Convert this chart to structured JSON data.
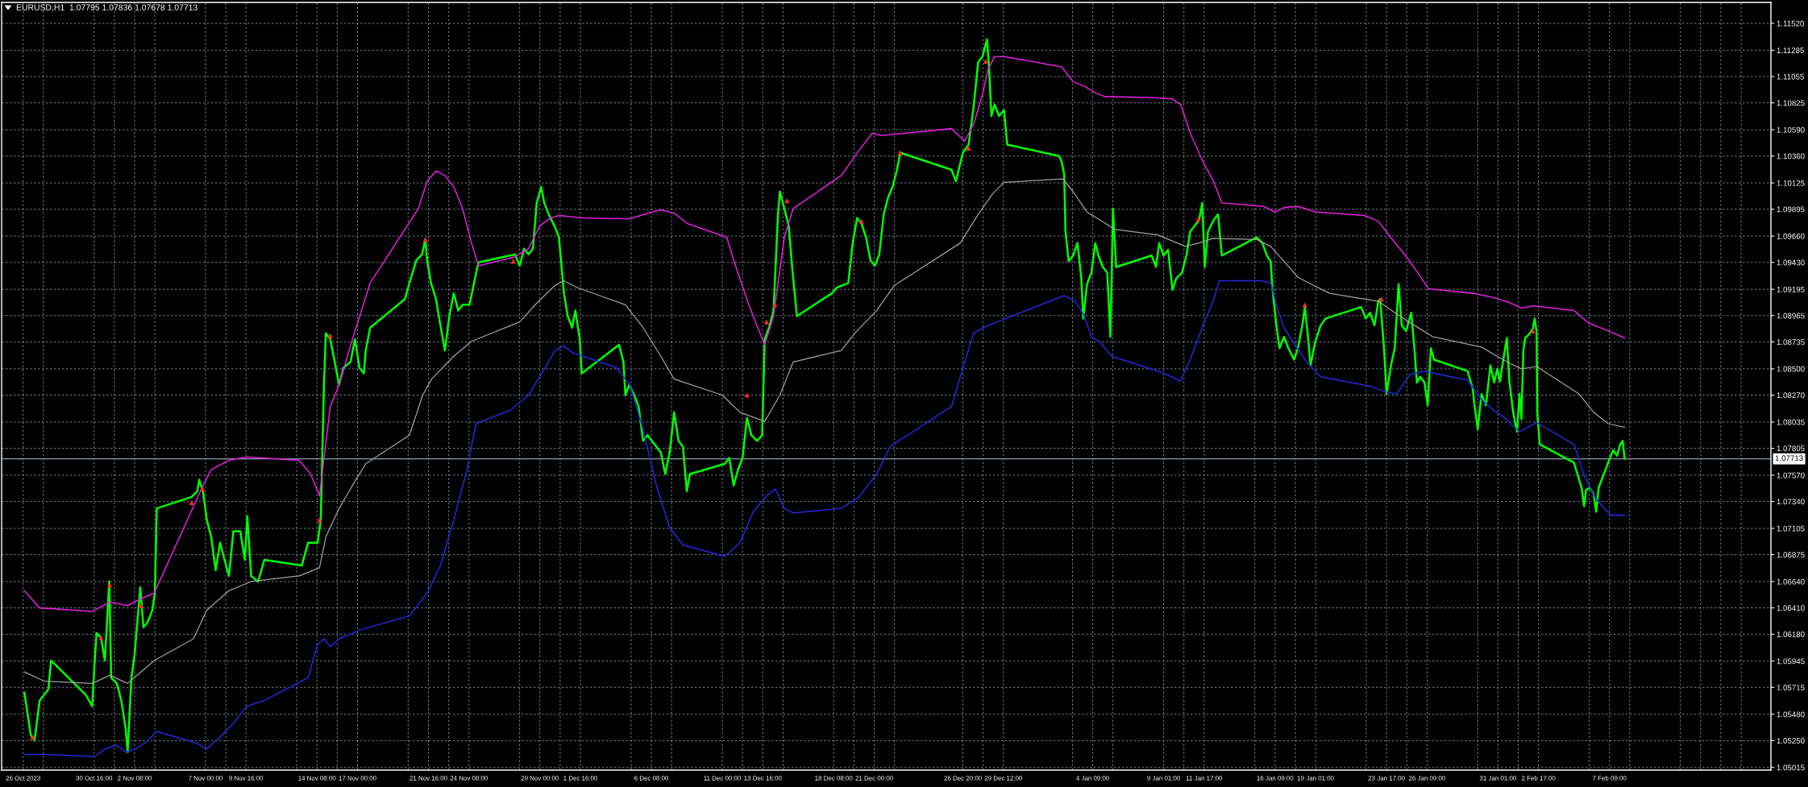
{
  "chart_data": {
    "type": "line",
    "title": "EURUSD,H1  1.07795 1.07836 1.07678 1.07713",
    "xlim": [
      "2023-10-24T14:00",
      "2024-02-18T00:00"
    ],
    "ylim": [
      1.04992,
      1.11703
    ],
    "xticks": [
      {
        "value": "2023-10-26T00:00",
        "label": "26 Oct 2023"
      },
      {
        "value": "2023-10-27T08:00",
        "label": null
      },
      {
        "value": "2023-10-30T16:00",
        "label": "30 Oct 16:00"
      },
      {
        "value": "2023-11-01T00:00",
        "label": null
      },
      {
        "value": "2023-11-02T08:00",
        "label": "2 Nov 08:00"
      },
      {
        "value": "2023-11-03T16:00",
        "label": null
      },
      {
        "value": "2023-11-07T00:00",
        "label": "7 Nov 00:00"
      },
      {
        "value": "2023-11-08T08:00",
        "label": null
      },
      {
        "value": "2023-11-09T16:00",
        "label": "9 Nov 16:00"
      },
      {
        "value": "2023-11-13T00:00",
        "label": null
      },
      {
        "value": "2023-11-14T08:00",
        "label": "14 Nov 08:00"
      },
      {
        "value": "2023-11-15T16:00",
        "label": null
      },
      {
        "value": "2023-11-17T00:00",
        "label": "17 Nov 00:00"
      },
      {
        "value": "2023-11-20T08:00",
        "label": null
      },
      {
        "value": "2023-11-21T16:00",
        "label": "21 Nov 16:00"
      },
      {
        "value": "2023-11-23T00:00",
        "label": null
      },
      {
        "value": "2023-11-24T08:00",
        "label": "24 Nov 08:00"
      },
      {
        "value": "2023-11-27T16:00",
        "label": null
      },
      {
        "value": "2023-11-29T00:00",
        "label": "29 Nov 00:00"
      },
      {
        "value": "2023-11-30T08:00",
        "label": null
      },
      {
        "value": "2023-12-01T16:00",
        "label": "1 Dec 16:00"
      },
      {
        "value": "2023-12-05T00:00",
        "label": null
      },
      {
        "value": "2023-12-06T08:00",
        "label": "6 Dec 08:00"
      },
      {
        "value": "2023-12-07T16:00",
        "label": null
      },
      {
        "value": "2023-12-11T00:00",
        "label": "11 Dec 00:00"
      },
      {
        "value": "2023-12-12T08:00",
        "label": null
      },
      {
        "value": "2023-12-13T16:00",
        "label": "13 Dec 16:00"
      },
      {
        "value": "2023-12-15T00:00",
        "label": null
      },
      {
        "value": "2023-12-18T08:00",
        "label": "18 Dec 08:00"
      },
      {
        "value": "2023-12-19T16:00",
        "label": null
      },
      {
        "value": "2023-12-21T00:00",
        "label": "21 Dec 00:00"
      },
      {
        "value": "2023-12-22T08:00",
        "label": null
      },
      {
        "value": "2023-12-26T20:00",
        "label": "26 Dec 20:00"
      },
      {
        "value": "2023-12-28T04:00",
        "label": null
      },
      {
        "value": "2023-12-29T12:00",
        "label": "29 Dec 12:00"
      },
      {
        "value": "2024-01-03T01:00",
        "label": null
      },
      {
        "value": "2024-01-04T09:00",
        "label": "4 Jan 09:00"
      },
      {
        "value": "2024-01-05T17:00",
        "label": null
      },
      {
        "value": "2024-01-09T01:00",
        "label": "9 Jan 01:00"
      },
      {
        "value": "2024-01-10T09:00",
        "label": null
      },
      {
        "value": "2024-01-11T17:00",
        "label": "11 Jan 17:00"
      },
      {
        "value": "2024-01-15T01:00",
        "label": null
      },
      {
        "value": "2024-01-16T09:00",
        "label": "16 Jan 09:00"
      },
      {
        "value": "2024-01-17T17:00",
        "label": null
      },
      {
        "value": "2024-01-19T01:00",
        "label": "19 Jan 01:00"
      },
      {
        "value": "2024-01-22T09:00",
        "label": null
      },
      {
        "value": "2024-01-23T17:00",
        "label": "23 Jan 17:00"
      },
      {
        "value": "2024-01-25T01:00",
        "label": null
      },
      {
        "value": "2024-01-26T09:00",
        "label": "26 Jan 09:00"
      },
      {
        "value": "2024-01-29T17:00",
        "label": null
      },
      {
        "value": "2024-01-31T01:00",
        "label": "31 Jan 01:00"
      },
      {
        "value": "2024-02-01T09:00",
        "label": null
      },
      {
        "value": "2024-02-02T17:00",
        "label": "2 Feb 17:00"
      },
      {
        "value": "2024-02-06T01:00",
        "label": null
      },
      {
        "value": "2024-02-07T09:00",
        "label": "7 Feb 09:00"
      },
      {
        "value": "2024-02-08T17:00",
        "label": null
      },
      {
        "value": "2024-02-12T01:00",
        "label": null
      },
      {
        "value": "2024-02-13T09:00",
        "label": null
      },
      {
        "value": "2024-02-14T17:00",
        "label": null
      },
      {
        "value": "2024-02-16T01:00",
        "label": null
      }
    ],
    "yticks": [
      {
        "value": 1.1152,
        "label": "1.11520"
      },
      {
        "value": 1.11285,
        "label": "1.11285"
      },
      {
        "value": 1.11055,
        "label": "1.11055"
      },
      {
        "value": 1.10825,
        "label": "1.10825"
      },
      {
        "value": 1.1059,
        "label": "1.10590"
      },
      {
        "value": 1.1036,
        "label": "1.10360"
      },
      {
        "value": 1.10125,
        "label": "1.10125"
      },
      {
        "value": 1.09895,
        "label": "1.09895"
      },
      {
        "value": 1.0966,
        "label": "1.09660"
      },
      {
        "value": 1.0943,
        "label": "1.09430"
      },
      {
        "value": 1.09195,
        "label": "1.09195"
      },
      {
        "value": 1.08965,
        "label": "1.08965"
      },
      {
        "value": 1.08735,
        "label": "1.08735"
      },
      {
        "value": 1.085,
        "label": "1.08500"
      },
      {
        "value": 1.0827,
        "label": "1.08270"
      },
      {
        "value": 1.08035,
        "label": "1.08035"
      },
      {
        "value": 1.07805,
        "label": "1.07805"
      },
      {
        "value": 1.0757,
        "label": "1.07570"
      },
      {
        "value": 1.0734,
        "label": "1.07340"
      },
      {
        "value": 1.07105,
        "label": "1.07105"
      },
      {
        "value": 1.06875,
        "label": "1.06875"
      },
      {
        "value": 1.0664,
        "label": "1.06640"
      },
      {
        "value": 1.0641,
        "label": "1.06410"
      },
      {
        "value": 1.0618,
        "label": "1.06180"
      },
      {
        "value": 1.05945,
        "label": "1.05945"
      },
      {
        "value": 1.05715,
        "label": "1.05715"
      },
      {
        "value": 1.0548,
        "label": "1.05480"
      },
      {
        "value": 1.0525,
        "label": "1.05250"
      },
      {
        "value": 1.05015,
        "label": "1.05015"
      }
    ],
    "grid": true,
    "ref_lines": [
      {
        "axis": "y",
        "value": 1.07713,
        "label": "1.07713",
        "color": "#8a9bb0"
      }
    ],
    "series": [
      {
        "color": "#00ff00",
        "x": [
          "2023-10-26T02:00",
          "2023-10-26T12:00",
          "2023-10-26T18:00",
          "2023-10-27T02:00",
          "2023-10-27T16:00",
          "2023-10-27T20:00",
          "2023-10-30T03:00",
          "2023-10-30T13:00",
          "2023-10-30T17:00",
          "2023-10-30T20:00",
          "2023-10-31T03:00",
          "2023-10-31T09:00",
          "2023-10-31T16:00",
          "2023-10-31T19:00",
          "2023-11-01T04:00",
          "2023-11-01T11:00",
          "2023-11-01T18:00",
          "2023-11-01T21:00",
          "2023-11-02T03:00",
          "2023-11-02T08:00",
          "2023-11-02T17:00",
          "2023-11-02T22:00",
          "2023-11-03T05:00",
          "2023-11-03T12:00",
          "2023-11-03T16:00",
          "2023-11-03T19:00",
          "2023-11-06T02:00",
          "2023-11-06T11:00",
          "2023-11-06T14:00",
          "2023-11-06T20:00",
          "2023-11-07T02:00",
          "2023-11-07T09:00",
          "2023-11-07T16:00",
          "2023-11-07T23:00",
          "2023-11-08T06:00",
          "2023-11-08T13:00",
          "2023-11-08T20:00",
          "2023-11-09T07:00",
          "2023-11-09T14:00",
          "2023-11-09T18:00",
          "2023-11-10T00:00",
          "2023-11-10T11:00",
          "2023-11-10T21:00",
          "2023-11-13T08:00",
          "2023-11-13T18:00",
          "2023-11-14T09:00",
          "2023-11-14T14:00",
          "2023-11-14T19:00",
          "2023-11-14T22:00",
          "2023-11-15T05:00",
          "2023-11-15T12:00",
          "2023-11-15T19:00",
          "2023-11-16T02:00",
          "2023-11-16T13:00",
          "2023-11-16T20:00",
          "2023-11-17T03:00",
          "2023-11-17T10:00",
          "2023-11-17T13:00",
          "2023-11-17T20:00",
          "2023-11-20T03:00",
          "2023-11-20T10:00",
          "2023-11-20T21:00",
          "2023-11-21T06:00",
          "2023-11-21T11:00",
          "2023-11-21T14:00",
          "2023-11-21T20:00",
          "2023-11-22T04:00",
          "2023-11-22T10:00",
          "2023-11-22T18:00",
          "2023-11-23T01:00",
          "2023-11-23T08:00",
          "2023-11-23T15:00",
          "2023-11-23T22:00",
          "2023-11-24T09:00",
          "2023-11-24T16:00",
          "2023-11-24T23:00",
          "2023-11-27T09:00",
          "2023-11-27T16:00",
          "2023-11-27T23:00",
          "2023-11-28T06:00",
          "2023-11-28T13:00",
          "2023-11-28T19:00",
          "2023-11-29T02:00",
          "2023-11-29T07:00",
          "2023-11-29T14:00",
          "2023-11-29T23:00",
          "2023-11-30T06:00",
          "2023-11-30T11:00",
          "2023-11-30T14:00",
          "2023-11-30T20:00",
          "2023-12-01T03:00",
          "2023-12-01T08:00",
          "2023-12-01T15:00",
          "2023-12-01T18:00",
          "2023-12-04T05:00",
          "2023-12-04T12:00",
          "2023-12-04T15:00",
          "2023-12-04T21:00",
          "2023-12-05T05:00",
          "2023-12-05T12:00",
          "2023-12-05T19:00",
          "2023-12-06T02:00",
          "2023-12-06T16:00",
          "2023-12-06T23:00",
          "2023-12-07T06:00",
          "2023-12-07T13:00",
          "2023-12-07T20:00",
          "2023-12-08T03:00",
          "2023-12-08T10:00",
          "2023-12-08T16:00",
          "2023-12-08T21:00",
          "2023-12-11T04:00",
          "2023-12-11T11:00",
          "2023-12-11T18:00",
          "2023-12-12T01:00",
          "2023-12-12T08:00",
          "2023-12-12T15:00",
          "2023-12-12T22:00",
          "2023-12-13T07:00",
          "2023-12-13T15:00",
          "2023-12-13T19:00",
          "2023-12-14T02:00",
          "2023-12-14T09:00",
          "2023-12-14T16:00",
          "2023-12-14T19:00",
          "2023-12-15T02:00",
          "2023-12-15T09:00",
          "2023-12-15T15:00",
          "2023-12-15T22:00",
          "2023-12-18T05:00",
          "2023-12-18T13:00",
          "2023-12-19T07:00",
          "2023-12-19T14:00",
          "2023-12-19T21:00",
          "2023-12-20T04:00",
          "2023-12-20T11:00",
          "2023-12-20T18:00",
          "2023-12-21T01:00",
          "2023-12-21T08:00",
          "2023-12-21T15:00",
          "2023-12-21T22:00",
          "2023-12-22T05:00",
          "2023-12-22T12:00",
          "2023-12-22T17:00",
          "2023-12-26T02:00",
          "2023-12-26T09:00",
          "2023-12-26T20:00",
          "2023-12-27T05:00",
          "2023-12-27T13:00",
          "2023-12-27T20:00",
          "2023-12-28T03:00",
          "2023-12-28T10:00",
          "2023-12-28T13:00",
          "2023-12-28T17:00",
          "2023-12-28T22:00",
          "2023-12-29T05:00",
          "2023-12-29T13:00",
          "2023-12-29T18:00",
          "2024-01-02T04:00",
          "2024-01-02T08:00",
          "2024-01-02T12:00",
          "2024-01-02T14:00",
          "2024-01-02T19:00",
          "2024-01-03T02:00",
          "2024-01-03T09:00",
          "2024-01-03T15:00",
          "2024-01-03T18:00",
          "2024-01-04T00:00",
          "2024-01-04T07:00",
          "2024-01-04T13:00",
          "2024-01-04T18:00",
          "2024-01-05T01:00",
          "2024-01-05T08:00",
          "2024-01-05T13:00",
          "2024-01-05T17:00",
          "2024-01-05T22:00",
          "2024-01-08T06:00",
          "2024-01-08T13:00",
          "2024-01-08T18:00",
          "2024-01-09T01:00",
          "2024-01-09T08:00",
          "2024-01-09T15:00",
          "2024-01-09T21:00",
          "2024-01-10T06:00",
          "2024-01-10T13:00",
          "2024-01-10T19:00",
          "2024-01-11T02:00",
          "2024-01-11T09:00",
          "2024-01-11T14:00",
          "2024-01-11T18:00",
          "2024-01-11T23:00",
          "2024-01-12T08:00",
          "2024-01-12T15:00",
          "2024-01-12T21:00",
          "2024-01-15T04:00",
          "2024-01-15T13:00",
          "2024-01-15T20:00",
          "2024-01-16T02:00",
          "2024-01-16T05:00",
          "2024-01-16T11:00",
          "2024-01-16T16:00",
          "2024-01-16T23:00",
          "2024-01-17T06:00",
          "2024-01-17T15:00",
          "2024-01-17T21:00",
          "2024-01-18T04:00",
          "2024-01-18T08:00",
          "2024-01-18T13:00",
          "2024-01-18T17:00",
          "2024-01-19T00:00",
          "2024-01-19T09:00",
          "2024-01-19T17:00",
          "2024-01-22T01:00",
          "2024-01-22T08:00",
          "2024-01-22T15:00",
          "2024-01-22T22:00",
          "2024-01-23T04:00",
          "2024-01-23T07:00",
          "2024-01-23T13:00",
          "2024-01-23T17:00",
          "2024-01-24T00:00",
          "2024-01-24T06:00",
          "2024-01-24T12:00",
          "2024-01-24T17:00",
          "2024-01-25T00:00",
          "2024-01-25T08:00",
          "2024-01-25T13:00",
          "2024-01-25T17:00",
          "2024-01-25T22:00",
          "2024-01-26T05:00",
          "2024-01-26T10:00",
          "2024-01-26T15:00",
          "2024-01-26T20:00",
          "2024-01-29T01:00",
          "2024-01-29T09:00",
          "2024-01-29T12:00",
          "2024-01-29T17:00",
          "2024-01-29T23:00",
          "2024-01-30T06:00",
          "2024-01-30T13:00",
          "2024-01-30T19:00",
          "2024-01-31T00:00",
          "2024-01-31T04:00",
          "2024-01-31T10:00",
          "2024-01-31T15:00",
          "2024-01-31T19:00",
          "2024-02-01T01:00",
          "2024-02-01T07:00",
          "2024-02-01T11:00",
          "2024-02-01T14:00",
          "2024-02-01T17:00",
          "2024-02-01T20:00",
          "2024-02-02T02:00",
          "2024-02-02T08:00",
          "2024-02-02T11:00",
          "2024-02-02T14:00",
          "2024-02-02T15:00",
          "2024-02-02T19:00",
          "2024-02-05T01:00",
          "2024-02-05T07:00",
          "2024-02-05T13:00",
          "2024-02-05T17:00",
          "2024-02-05T20:00",
          "2024-02-06T02:00",
          "2024-02-06T08:00",
          "2024-02-06T12:00",
          "2024-02-06T16:00",
          "2024-02-06T22:00",
          "2024-02-07T03:00",
          "2024-02-07T09:00",
          "2024-02-07T15:00",
          "2024-02-07T21:00",
          "2024-02-08T02:00",
          "2024-02-08T06:00",
          "2024-02-08T09:00"
        ],
        "values": [
          1.0567,
          1.053,
          1.0525,
          1.056,
          1.057,
          1.0595,
          1.0565,
          1.0555,
          1.0595,
          1.0619,
          1.0615,
          1.0595,
          1.0664,
          1.058,
          1.0575,
          1.056,
          1.0535,
          1.0515,
          1.058,
          1.06,
          1.0659,
          1.0624,
          1.0629,
          1.0639,
          1.0654,
          1.0728,
          1.0738,
          1.0743,
          1.0753,
          1.0743,
          1.0718,
          1.0703,
          1.0674,
          1.0698,
          1.0683,
          1.0669,
          1.0708,
          1.0708,
          1.0683,
          1.0721,
          1.0669,
          1.0664,
          1.0683,
          1.0678,
          1.0698,
          1.0698,
          1.0718,
          1.0836,
          1.0881,
          1.0876,
          1.0856,
          1.0836,
          1.0851,
          1.0856,
          1.0876,
          1.0851,
          1.0846,
          1.0866,
          1.0886,
          1.0911,
          1.0925,
          1.0945,
          1.095,
          1.0963,
          1.0945,
          1.0925,
          1.0911,
          1.0891,
          1.0866,
          1.0896,
          1.0916,
          1.0901,
          1.0906,
          1.0906,
          1.0925,
          1.0943,
          1.095,
          1.094,
          1.0955,
          1.095,
          1.0955,
          1.0995,
          1.1009,
          1.0995,
          1.0985,
          1.0975,
          1.0965,
          1.0935,
          1.0916,
          1.0896,
          1.0886,
          1.0901,
          1.0876,
          1.0846,
          1.0871,
          1.0856,
          1.0827,
          1.0836,
          1.0827,
          1.0817,
          1.0787,
          1.0792,
          1.0782,
          1.0777,
          1.0758,
          1.0777,
          1.0812,
          1.0787,
          1.0782,
          1.0743,
          1.0758,
          1.0767,
          1.0772,
          1.0748,
          1.0762,
          1.0772,
          1.0807,
          1.0792,
          1.0787,
          1.0792,
          1.0876,
          1.0886,
          1.0901,
          1.0985,
          1.1005,
          1.099,
          1.0975,
          1.0935,
          1.0896,
          1.0916,
          1.0921,
          1.0925,
          1.096,
          1.0982,
          1.0977,
          1.0965,
          1.0945,
          1.094,
          1.095,
          1.0985,
          1.1,
          1.1009,
          1.1024,
          1.1039,
          1.1024,
          1.1014,
          1.1039,
          1.1046,
          1.1079,
          1.1118,
          1.1123,
          1.1138,
          1.1117,
          1.1071,
          1.1081,
          1.1071,
          1.1076,
          1.1046,
          1.1036,
          1.1031,
          1.102,
          1.097,
          1.0944,
          1.0949,
          1.096,
          1.0929,
          1.0894,
          1.0924,
          1.0934,
          1.096,
          1.0949,
          1.0939,
          1.0934,
          1.0878,
          1.099,
          1.0939,
          1.0949,
          1.0939,
          1.096,
          1.0949,
          1.0954,
          1.0919,
          1.0929,
          1.0934,
          1.0949,
          1.097,
          1.0975,
          1.098,
          1.0995,
          1.0939,
          1.097,
          1.098,
          1.0985,
          1.0949,
          1.0965,
          1.096,
          1.0949,
          1.0944,
          1.0919,
          1.0888,
          1.0868,
          1.0878,
          1.0868,
          1.0858,
          1.0868,
          1.0888,
          1.0904,
          1.0878,
          1.0853,
          1.0873,
          1.0888,
          1.0894,
          1.0904,
          1.0894,
          1.0899,
          1.0888,
          1.0909,
          1.0911,
          1.0868,
          1.0828,
          1.0853,
          1.0868,
          1.0924,
          1.0888,
          1.0883,
          1.0899,
          1.0868,
          1.0838,
          1.0843,
          1.0838,
          1.0818,
          1.0868,
          1.0858,
          1.0848,
          1.0833,
          1.0818,
          1.0797,
          1.0828,
          1.0818,
          1.0853,
          1.0838,
          1.085,
          1.0839,
          1.086,
          1.0877,
          1.0839,
          1.0812,
          1.0795,
          1.0828,
          1.0806,
          1.0866,
          1.0877,
          1.088,
          1.0885,
          1.0894,
          1.0882,
          1.0812,
          1.0784,
          1.0768,
          1.0757,
          1.0746,
          1.073,
          1.0744,
          1.0746,
          1.0741,
          1.0725,
          1.0746,
          1.0755,
          1.0762,
          1.0771,
          1.0779,
          1.0774,
          1.0784,
          1.0787,
          1.07713
        ]
      },
      {
        "color": "#e020e0",
        "x": [
          "2023-10-26T02:00",
          "2023-10-27T02:00",
          "2023-10-30T13:00",
          "2023-10-31T17:00",
          "2023-11-01T21:00",
          "2023-11-02T18:00",
          "2023-11-03T15:00",
          "2023-11-06T16:00",
          "2023-11-07T09:00",
          "2023-11-08T13:00",
          "2023-11-09T17:00",
          "2023-11-13T04:00",
          "2023-11-13T22:00",
          "2023-11-14T12:00",
          "2023-11-15T05:00",
          "2023-11-15T19:00",
          "2023-11-16T16:00",
          "2023-11-17T20:00",
          "2023-11-21T00:00",
          "2023-11-21T14:00",
          "2023-11-22T04:00",
          "2023-11-22T18:00",
          "2023-11-23T08:00",
          "2023-11-23T22:00",
          "2023-11-24T12:00",
          "2023-11-24T23:00",
          "2023-11-27T09:00",
          "2023-11-28T06:00",
          "2023-11-29T00:00",
          "2023-11-29T17:00",
          "2023-11-30T07:00",
          "2023-12-01T18:00",
          "2023-12-04T22:00",
          "2023-12-06T02:00",
          "2023-12-06T23:00",
          "2023-12-07T20:00",
          "2023-12-08T17:00",
          "2023-12-11T07:00",
          "2023-12-11T21:00",
          "2023-12-12T18:00",
          "2023-12-13T08:00",
          "2023-12-13T19:00",
          "2023-12-14T09:00",
          "2023-12-15T02:00",
          "2023-12-15T16:00",
          "2023-12-18T20:00",
          "2023-12-20T00:00",
          "2023-12-20T21:00",
          "2023-12-21T11:00",
          "2023-12-26T02:00",
          "2023-12-26T23:00",
          "2023-12-27T13:00",
          "2023-12-28T03:00",
          "2023-12-28T12:00",
          "2023-12-28T22:00",
          "2023-12-29T13:00",
          "2024-01-02T08:00",
          "2024-01-03T02:00",
          "2024-01-03T20:00",
          "2024-01-04T14:00",
          "2024-01-05T04:00",
          "2024-01-08T09:00",
          "2024-01-09T14:00",
          "2024-01-10T04:00",
          "2024-01-10T19:00",
          "2024-01-11T16:00",
          "2024-01-12T07:00",
          "2024-01-12T21:00",
          "2024-01-15T15:00",
          "2024-01-16T09:00",
          "2024-01-16T23:00",
          "2024-01-17T21:00",
          "2024-01-19T02:00",
          "2024-01-22T06:00",
          "2024-01-23T04:00",
          "2024-01-24T01:00",
          "2024-01-24T23:00",
          "2024-01-25T21:00",
          "2024-01-26T11:00",
          "2024-01-29T09:00",
          "2024-01-30T13:00",
          "2024-01-31T19:00",
          "2024-02-01T14:00",
          "2024-02-02T08:00",
          "2024-02-05T01:00",
          "2024-02-06T00:00",
          "2024-02-06T23:00",
          "2024-02-08T09:00"
        ],
        "values": [
          1.0656,
          1.0641,
          1.0638,
          1.0646,
          1.0643,
          1.0649,
          1.0654,
          1.0743,
          1.0762,
          1.077,
          1.0773,
          1.077,
          1.0758,
          1.0739,
          1.0817,
          1.0836,
          1.0876,
          1.0925,
          1.099,
          1.1014,
          1.1023,
          1.1019,
          1.1009,
          1.099,
          1.096,
          1.094,
          1.0948,
          1.0955,
          1.0975,
          1.0982,
          1.0984,
          1.0982,
          1.0981,
          1.0986,
          1.0989,
          1.0986,
          1.0977,
          1.0965,
          1.094,
          1.0906,
          1.0886,
          1.0871,
          1.0896,
          1.0965,
          1.099,
          1.1019,
          1.1041,
          1.1056,
          1.1054,
          1.106,
          1.1049,
          1.1064,
          1.109,
          1.1112,
          1.1123,
          1.1123,
          1.1114,
          1.1101,
          1.1097,
          1.1091,
          1.1088,
          1.1087,
          1.1086,
          1.1081,
          1.1056,
          1.103,
          1.1015,
          1.0995,
          1.0992,
          1.0987,
          1.0991,
          1.0992,
          1.0987,
          1.0984,
          1.0979,
          1.0964,
          1.0949,
          1.0932,
          1.092,
          1.0916,
          1.0913,
          1.0908,
          1.0903,
          1.0905,
          1.0901,
          1.089,
          1.0885,
          1.0877
        ]
      },
      {
        "color": "#a0a0a0",
        "x": [
          "2023-10-26T02:00",
          "2023-10-27T09:00",
          "2023-10-30T13:00",
          "2023-10-31T17:00",
          "2023-11-01T21:00",
          "2023-11-02T18:00",
          "2023-11-03T15:00",
          "2023-11-06T05:00",
          "2023-11-07T02:00",
          "2023-11-08T13:00",
          "2023-11-10T00:00",
          "2023-11-13T04:00",
          "2023-11-14T12:00",
          "2023-11-14T22:00",
          "2023-11-15T19:00",
          "2023-11-16T16:00",
          "2023-11-17T13:00",
          "2023-11-20T10:00",
          "2023-11-21T07:00",
          "2023-11-21T21:00",
          "2023-11-23T08:00",
          "2023-11-24T12:00",
          "2023-11-27T16:00",
          "2023-11-28T20:00",
          "2023-11-30T00:00",
          "2023-11-30T14:00",
          "2023-12-01T11:00",
          "2023-12-04T15:00",
          "2023-12-05T19:00",
          "2023-12-06T23:00",
          "2023-12-07T20:00",
          "2023-12-11T00:00",
          "2023-12-12T04:00",
          "2023-12-13T19:00",
          "2023-12-14T19:00",
          "2023-12-15T16:00",
          "2023-12-18T20:00",
          "2023-12-19T17:00",
          "2023-12-21T04:00",
          "2023-12-22T08:00",
          "2023-12-26T16:00",
          "2023-12-27T20:00",
          "2023-12-28T19:00",
          "2023-12-29T13:00",
          "2024-01-02T10:00",
          "2024-01-03T02:00",
          "2024-01-04T00:00",
          "2024-01-04T21:00",
          "2024-01-05T19:00",
          "2024-01-08T16:00",
          "2024-01-09T14:00",
          "2024-01-10T11:00",
          "2024-01-11T09:00",
          "2024-01-12T07:00",
          "2024-01-15T04:00",
          "2024-01-16T02:00",
          "2024-01-16T23:00",
          "2024-01-17T21:00",
          "2024-01-18T18:00",
          "2024-01-19T23:00",
          "2024-01-23T04:00",
          "2024-01-24T09:00",
          "2024-01-25T13:00",
          "2024-01-26T18:00",
          "2024-01-29T23:00",
          "2024-01-30T20:00",
          "2024-01-31T19:00",
          "2024-02-01T14:00",
          "2024-02-02T14:00",
          "2024-02-05T09:00",
          "2024-02-06T08:00",
          "2024-02-07T07:00",
          "2024-02-08T09:00"
        ],
        "values": [
          1.0585,
          1.0577,
          1.0575,
          1.0582,
          1.0575,
          1.0585,
          1.0595,
          1.0614,
          1.0639,
          1.0656,
          1.0664,
          1.0669,
          1.0676,
          1.0703,
          1.0728,
          1.0748,
          1.0767,
          1.0792,
          1.0827,
          1.0841,
          1.0861,
          1.0874,
          1.0891,
          1.0908,
          1.0923,
          1.0927,
          1.0921,
          1.0906,
          1.0886,
          1.0861,
          1.0841,
          1.0827,
          1.0812,
          1.0804,
          1.0827,
          1.0856,
          1.0866,
          1.0881,
          1.0901,
          1.0923,
          1.096,
          1.0985,
          1.1003,
          1.1013,
          1.1016,
          1.1005,
          1.0987,
          1.098,
          1.0972,
          1.0967,
          1.0962,
          1.0957,
          1.096,
          1.0964,
          1.0963,
          1.0957,
          1.0944,
          1.093,
          1.0924,
          1.0916,
          1.0909,
          1.0898,
          1.0888,
          1.0878,
          1.0869,
          1.0862,
          1.0855,
          1.085,
          1.0852,
          1.0828,
          1.0812,
          1.0802,
          1.0799
        ]
      },
      {
        "color": "#2626d9",
        "x": [
          "2023-10-26T02:00",
          "2023-10-27T09:00",
          "2023-10-30T17:00",
          "2023-10-31T10:00",
          "2023-11-01T04:00",
          "2023-11-01T18:00",
          "2023-11-02T11:00",
          "2023-11-03T05:00",
          "2023-11-03T19:00",
          "2023-11-06T09:00",
          "2023-11-07T02:00",
          "2023-11-07T23:00",
          "2023-11-08T20:00",
          "2023-11-09T17:00",
          "2023-11-10T21:00",
          "2023-11-13T18:00",
          "2023-11-14T09:00",
          "2023-11-14T19:00",
          "2023-11-15T05:00",
          "2023-11-15T19:00",
          "2023-11-17T06:00",
          "2023-11-20T10:00",
          "2023-11-21T14:00",
          "2023-11-22T11:00",
          "2023-11-23T08:00",
          "2023-11-24T05:00",
          "2023-11-24T19:00",
          "2023-11-27T02:00",
          "2023-11-28T06:00",
          "2023-11-29T03:00",
          "2023-11-30T00:00",
          "2023-11-30T13:00",
          "2023-12-01T04:00",
          "2023-12-04T01:00",
          "2023-12-04T22:00",
          "2023-12-05T19:00",
          "2023-12-06T16:00",
          "2023-12-07T13:00",
          "2023-12-08T10:00",
          "2023-12-11T04:00",
          "2023-12-12T04:00",
          "2023-12-13T01:00",
          "2023-12-13T22:00",
          "2023-12-14T12:00",
          "2023-12-15T02:00",
          "2023-12-15T16:00",
          "2023-12-18T20:00",
          "2023-12-20T00:00",
          "2023-12-21T04:00",
          "2023-12-22T01:00",
          "2023-12-26T02:00",
          "2023-12-26T23:00",
          "2023-12-27T13:00",
          "2023-12-28T04:00",
          "2023-12-29T02:00",
          "2024-01-02T12:00",
          "2024-01-03T06:00",
          "2024-01-03T20:00",
          "2024-01-04T07:00",
          "2024-01-04T21:00",
          "2024-01-05T15:00",
          "2024-01-08T16:00",
          "2024-01-09T14:00",
          "2024-01-10T03:00",
          "2024-01-10T19:00",
          "2024-01-11T16:00",
          "2024-01-12T07:00",
          "2024-01-12T17:00",
          "2024-01-15T11:00",
          "2024-01-16T02:00",
          "2024-01-16T12:00",
          "2024-01-16T23:00",
          "2024-01-17T14:00",
          "2024-01-18T11:00",
          "2024-01-19T09:00",
          "2024-01-22T14:00",
          "2024-01-23T15:00",
          "2024-01-24T09:00",
          "2024-01-25T06:00",
          "2024-01-26T04:00",
          "2024-01-29T01:00",
          "2024-01-29T23:00",
          "2024-01-30T20:00",
          "2024-01-31T12:00",
          "2024-02-01T11:00",
          "2024-02-02T14:00",
          "2024-02-05T01:00",
          "2024-02-05T17:00",
          "2024-02-06T12:00",
          "2024-02-07T11:00",
          "2024-02-08T09:00"
        ],
        "values": [
          1.0513,
          1.0513,
          1.0511,
          1.0518,
          1.0521,
          1.0515,
          1.0518,
          1.0525,
          1.0533,
          1.0523,
          1.0518,
          1.0528,
          1.054,
          1.0555,
          1.056,
          1.058,
          1.0609,
          1.0614,
          1.0607,
          1.0614,
          1.0622,
          1.0634,
          1.0654,
          1.0678,
          1.0718,
          1.0762,
          1.0802,
          1.0814,
          1.0827,
          1.0846,
          1.0866,
          1.087,
          1.0864,
          1.0851,
          1.0836,
          1.0797,
          1.0748,
          1.0711,
          1.0696,
          1.0686,
          1.0698,
          1.0725,
          1.0739,
          1.0745,
          1.0728,
          1.0724,
          1.0728,
          1.0738,
          1.0758,
          1.0782,
          1.0817,
          1.0856,
          1.0881,
          1.0886,
          1.0891,
          1.0914,
          1.0909,
          1.0896,
          1.0878,
          1.0873,
          1.0861,
          1.0848,
          1.0843,
          1.0839,
          1.0858,
          1.0889,
          1.0909,
          1.0927,
          1.0927,
          1.0925,
          1.0904,
          1.0886,
          1.0873,
          1.0856,
          1.0843,
          1.0835,
          1.083,
          1.0828,
          1.0845,
          1.0848,
          1.084,
          1.0823,
          1.0813,
          1.0807,
          1.0795,
          1.0803,
          1.0784,
          1.0757,
          1.0736,
          1.0722,
          1.0722
        ]
      },
      {
        "type": "scatter",
        "marker": "triangle",
        "color": "#ff2a2a",
        "x": [
          "2023-10-26T15:00",
          "2023-10-31T03:00",
          "2023-10-31T17:00",
          "2023-11-02T18:00",
          "2023-11-06T02:00",
          "2023-11-06T19:00",
          "2023-11-14T12:00",
          "2023-11-15T05:00",
          "2023-11-21T11:00",
          "2023-11-27T06:00",
          "2023-12-12T15:00",
          "2023-12-13T22:00",
          "2023-12-14T11:00",
          "2023-12-15T06:00",
          "2023-12-20T04:00",
          "2023-12-22T17:00",
          "2023-12-27T05:00",
          "2023-12-28T08:00",
          "2024-01-11T08:00",
          "2024-01-18T08:00",
          "2024-01-23T09:00",
          "2024-02-02T08:00"
        ],
        "values": [
          1.0528,
          1.0615,
          1.0661,
          1.0643,
          1.0733,
          1.0745,
          1.0718,
          1.0879,
          1.0963,
          1.0944,
          1.0827,
          1.0891,
          1.0906,
          1.0997,
          1.0979,
          1.1039,
          1.1043,
          1.1119,
          1.0981,
          1.0906,
          1.0911,
          1.0883
        ]
      }
    ]
  }
}
